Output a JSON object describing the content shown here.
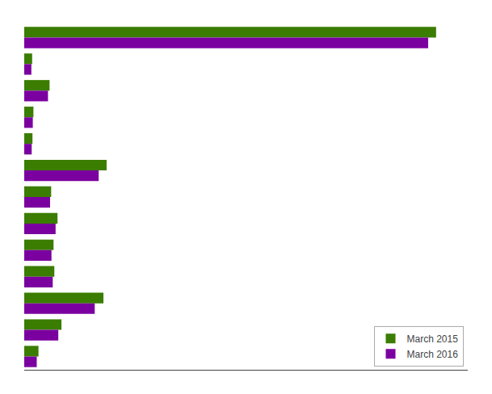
{
  "chart_data": {
    "type": "bar",
    "orientation": "horizontal",
    "categories": [
      null,
      null,
      null,
      null,
      null,
      null,
      null,
      null,
      null,
      null,
      null,
      null,
      null
    ],
    "series": [
      {
        "name": "March 2015",
        "color": "#3a7d00",
        "values": [
          26000,
          500,
          1600,
          580,
          520,
          5200,
          1700,
          2100,
          1850,
          1900,
          5000,
          2350,
          900
        ]
      },
      {
        "name": "March 2016",
        "color": "#7b00a0",
        "values": [
          25500,
          450,
          1500,
          540,
          470,
          4700,
          1630,
          1980,
          1720,
          1800,
          4450,
          2150,
          790
        ]
      }
    ],
    "xlim": [
      0,
      28000
    ],
    "tick_labels": false,
    "grid": false,
    "legend": "lower right"
  }
}
